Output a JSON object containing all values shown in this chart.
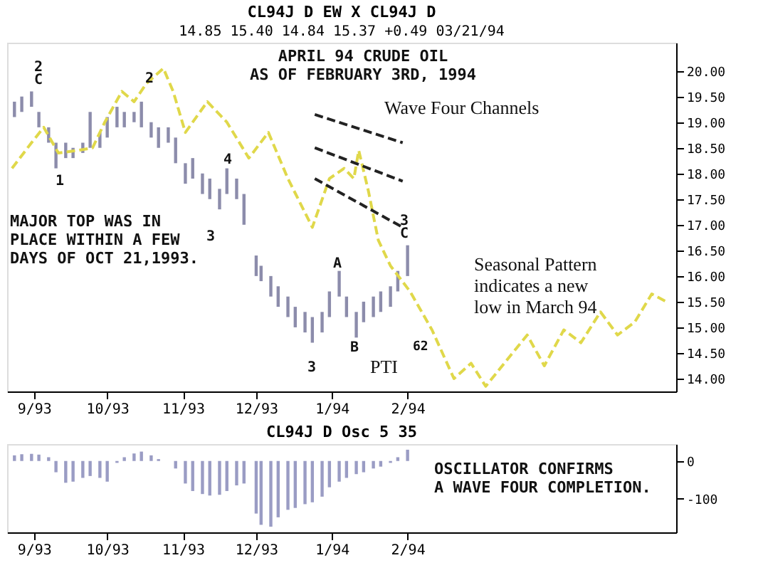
{
  "chart_data": [
    {
      "type": "bar",
      "title": "CL94J D  EW X CL94J D",
      "subtitle": "14.85   15.40   14.84   15.37   +0.49 03/21/94",
      "xlim": [
        "1993-08-21",
        "1994-05-22"
      ],
      "ylim": [
        13.75,
        20.55
      ],
      "xticks": [
        {
          "value": "1993-09-01",
          "label": "9/93"
        },
        {
          "value": "1993-10-01",
          "label": "10/93"
        },
        {
          "value": "1993-11-01",
          "label": "11/93"
        },
        {
          "value": "1993-12-01",
          "label": "12/93"
        },
        {
          "value": "1994-01-01",
          "label": "1/94"
        },
        {
          "value": "1994-02-01",
          "label": "2/94"
        }
      ],
      "yticks": [
        {
          "value": 14,
          "label": "14.00"
        },
        {
          "value": 14.5,
          "label": "14.50"
        },
        {
          "value": 15,
          "label": "15.00"
        },
        {
          "value": 15.5,
          "label": "15.50"
        },
        {
          "value": 16,
          "label": "16.00"
        },
        {
          "value": 16.5,
          "label": "16.50"
        },
        {
          "value": 17,
          "label": "17.00"
        },
        {
          "value": 17.5,
          "label": "17.50"
        },
        {
          "value": 18,
          "label": "18.00"
        },
        {
          "value": 18.5,
          "label": "18.50"
        },
        {
          "value": 19,
          "label": "19.00"
        },
        {
          "value": 19.5,
          "label": "19.50"
        },
        {
          "value": 20,
          "label": "20.00"
        }
      ],
      "series": [
        {
          "type": "bar",
          "color": "#8c8cab",
          "x": [
            "1993-08-24",
            "1993-08-27",
            "1993-08-31",
            "1993-09-03",
            "1993-09-07",
            "1993-09-10",
            "1993-09-14",
            "1993-09-17",
            "1993-09-21",
            "1993-09-24",
            "1993-09-28",
            "1993-10-01",
            "1993-10-05",
            "1993-10-08",
            "1993-10-12",
            "1993-10-15",
            "1993-10-19",
            "1993-10-22",
            "1993-10-26",
            "1993-10-29",
            "1993-11-02",
            "1993-11-05",
            "1993-11-09",
            "1993-11-12",
            "1993-11-16",
            "1993-11-19",
            "1993-11-23",
            "1993-11-26",
            "1993-12-01",
            "1993-12-03",
            "1993-12-07",
            "1993-12-10",
            "1993-12-14",
            "1993-12-17",
            "1993-12-21",
            "1993-12-24",
            "1993-12-28",
            "1993-12-31",
            "1994-01-04",
            "1994-01-07",
            "1994-01-11",
            "1994-01-14",
            "1994-01-18",
            "1994-01-21",
            "1994-01-25",
            "1994-01-28",
            "1994-02-01"
          ],
          "base": [
            19.1,
            19.2,
            19.3,
            18.9,
            18.6,
            18.1,
            18.3,
            18.3,
            18.4,
            18.5,
            18.5,
            18.7,
            18.9,
            18.9,
            19.0,
            18.9,
            18.7,
            18.5,
            18.6,
            18.2,
            17.8,
            17.9,
            17.6,
            17.5,
            17.3,
            17.6,
            17.5,
            17.0,
            16.0,
            15.9,
            15.6,
            15.4,
            15.2,
            15.0,
            14.9,
            14.7,
            14.9,
            15.2,
            15.6,
            15.2,
            14.8,
            15.1,
            15.2,
            15.3,
            15.4,
            15.7,
            16.0
          ],
          "values": [
            0.3,
            0.3,
            0.3,
            0.3,
            0.3,
            0.5,
            0.3,
            0.2,
            0.2,
            0.7,
            0.3,
            0.4,
            0.4,
            0.3,
            0.2,
            0.5,
            0.3,
            0.4,
            0.3,
            0.5,
            0.4,
            0.4,
            0.4,
            0.4,
            0.4,
            0.5,
            0.4,
            0.6,
            0.4,
            0.3,
            0.4,
            0.4,
            0.4,
            0.4,
            0.4,
            0.5,
            0.4,
            0.5,
            0.5,
            0.4,
            0.5,
            0.4,
            0.4,
            0.4,
            0.4,
            0.4,
            0.6
          ]
        },
        {
          "type": "line",
          "color": "#e0d84a",
          "line_style": "dashed",
          "x": [
            "1993-08-23",
            "1993-08-31",
            "1993-09-05",
            "1993-09-11",
            "1993-09-19",
            "1993-09-25",
            "1993-09-30",
            "1993-10-07",
            "1993-10-12",
            "1993-10-17",
            "1993-10-24",
            "1993-10-28",
            "1993-11-02",
            "1993-11-11",
            "1993-11-19",
            "1993-11-28",
            "1993-12-06",
            "1993-12-14",
            "1993-12-24",
            "1993-12-31",
            "1994-01-06",
            "1994-01-10",
            "1994-01-12",
            "1994-01-16",
            "1994-01-20",
            "1994-01-25",
            "1994-02-02",
            "1994-02-11",
            "1994-02-20",
            "1994-02-27",
            "1994-03-05",
            "1994-03-16",
            "1994-03-22",
            "1994-03-29",
            "1994-04-06",
            "1994-04-13",
            "1994-04-21",
            "1994-04-28",
            "1994-05-05",
            "1994-05-12",
            "1994-05-18"
          ],
          "values": [
            18.1,
            18.6,
            18.9,
            18.4,
            18.45,
            18.5,
            19.0,
            19.6,
            19.4,
            19.75,
            20.05,
            19.6,
            18.8,
            19.4,
            19.0,
            18.3,
            18.8,
            17.9,
            16.95,
            17.9,
            18.1,
            17.9,
            18.45,
            17.65,
            16.7,
            16.2,
            15.7,
            14.95,
            14.0,
            14.3,
            13.85,
            14.5,
            14.85,
            14.25,
            14.95,
            14.7,
            15.3,
            14.85,
            15.1,
            15.65,
            15.5
          ]
        },
        {
          "type": "line",
          "color": "#222222",
          "line_style": "dashed",
          "x": [
            "1993-12-25",
            "1994-01-30"
          ],
          "values": [
            19.15,
            18.6
          ]
        },
        {
          "type": "line",
          "color": "#222222",
          "line_style": "dashed",
          "x": [
            "1993-12-25",
            "1994-01-30"
          ],
          "values": [
            18.5,
            17.85
          ]
        },
        {
          "type": "line",
          "color": "#222222",
          "line_style": "dashed",
          "x": [
            "1993-12-25",
            "1994-01-30"
          ],
          "values": [
            17.9,
            16.95
          ]
        }
      ],
      "annotations": [
        "APRIL 94 CRUDE OIL\nAS OF FEBRUARY 3RD, 1994",
        "Wave Four Channels",
        "MAJOR TOP WAS IN\nPLACE WITHIN A FEW\nDAYS OF OCT 21,1993.",
        "Seasonal Pattern\nindicates a new\nlow in March 94",
        "PTI",
        "62",
        "2",
        "C",
        "1",
        "2",
        "3",
        "4",
        "A",
        "B",
        "3",
        "3",
        "C"
      ]
    },
    {
      "type": "bar",
      "title": "CL94J D Osc 5 35",
      "color": "#9a9cc4",
      "xlim": [
        "1993-08-21",
        "1994-05-22"
      ],
      "ylim": [
        -190,
        45
      ],
      "xticks": [
        {
          "value": "1993-09-01",
          "label": "9/93"
        },
        {
          "value": "1993-10-01",
          "label": "10/93"
        },
        {
          "value": "1993-11-01",
          "label": "11/93"
        },
        {
          "value": "1993-12-01",
          "label": "12/93"
        },
        {
          "value": "1994-01-01",
          "label": "1/94"
        },
        {
          "value": "1994-02-01",
          "label": "2/94"
        }
      ],
      "yticks": [
        0,
        -100
      ],
      "x": [
        "1993-08-24",
        "1993-08-27",
        "1993-08-31",
        "1993-09-03",
        "1993-09-07",
        "1993-09-10",
        "1993-09-14",
        "1993-09-17",
        "1993-09-21",
        "1993-09-24",
        "1993-09-28",
        "1993-10-01",
        "1993-10-05",
        "1993-10-08",
        "1993-10-12",
        "1993-10-15",
        "1993-10-19",
        "1993-10-22",
        "1993-10-26",
        "1993-10-29",
        "1993-11-02",
        "1993-11-05",
        "1993-11-09",
        "1993-11-12",
        "1993-11-16",
        "1993-11-19",
        "1993-11-23",
        "1993-11-26",
        "1993-12-01",
        "1993-12-03",
        "1993-12-07",
        "1993-12-10",
        "1993-12-14",
        "1993-12-17",
        "1993-12-21",
        "1993-12-24",
        "1993-12-28",
        "1993-12-31",
        "1994-01-04",
        "1994-01-07",
        "1994-01-11",
        "1994-01-14",
        "1994-01-18",
        "1994-01-21",
        "1994-01-25",
        "1994-01-28",
        "1994-02-01"
      ],
      "values": [
        15,
        18,
        19,
        17,
        10,
        -30,
        -58,
        -55,
        -45,
        -40,
        -45,
        -55,
        -5,
        10,
        20,
        25,
        15,
        5,
        0,
        -20,
        -60,
        -80,
        -88,
        -92,
        -90,
        -80,
        -65,
        -60,
        -140,
        -170,
        -175,
        -150,
        -130,
        -125,
        -115,
        -110,
        -95,
        -70,
        -55,
        -45,
        -35,
        -30,
        -20,
        -15,
        -5,
        10,
        30
      ],
      "annotations": [
        "OSCILLATOR CONFIRMS\nA WAVE FOUR COMPLETION."
      ]
    }
  ]
}
